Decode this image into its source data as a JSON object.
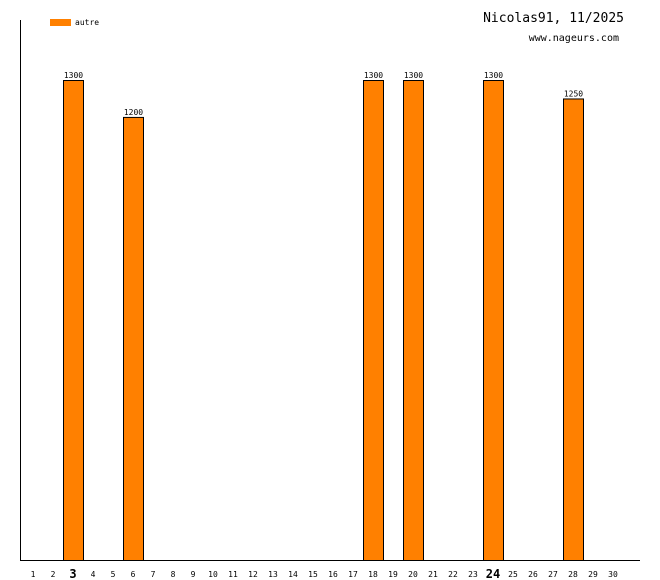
{
  "chart_data": {
    "type": "bar",
    "title": "Nicolas91, 11/2025",
    "subtitle": "www.nageurs.com",
    "legend": {
      "label": "autre",
      "color": "#ff8000",
      "position": "top-left"
    },
    "x": [
      1,
      2,
      3,
      4,
      5,
      6,
      7,
      8,
      9,
      10,
      11,
      12,
      13,
      14,
      15,
      16,
      17,
      18,
      19,
      20,
      21,
      22,
      23,
      24,
      25,
      26,
      27,
      28,
      29,
      30
    ],
    "tick_labels": [
      "1",
      "2",
      "3",
      "4",
      "5",
      "6",
      "7",
      "8",
      "9",
      "10",
      "11",
      "12",
      "13",
      "14",
      "15",
      "16",
      "17",
      "18",
      "19",
      "20",
      "21",
      "22",
      "23",
      "24",
      "25",
      "26",
      "27",
      "28",
      "29",
      "30"
    ],
    "highlighted_ticks": [
      "3",
      "24"
    ],
    "series": [
      {
        "name": "autre",
        "color": "#ff8000",
        "values": [
          0,
          0,
          1300,
          0,
          0,
          1200,
          0,
          0,
          0,
          0,
          0,
          0,
          0,
          0,
          0,
          0,
          0,
          1300,
          0,
          1300,
          0,
          0,
          0,
          1300,
          0,
          0,
          0,
          1250,
          0,
          0
        ]
      }
    ],
    "ylim": [
      0,
      1350
    ],
    "grid": false
  }
}
